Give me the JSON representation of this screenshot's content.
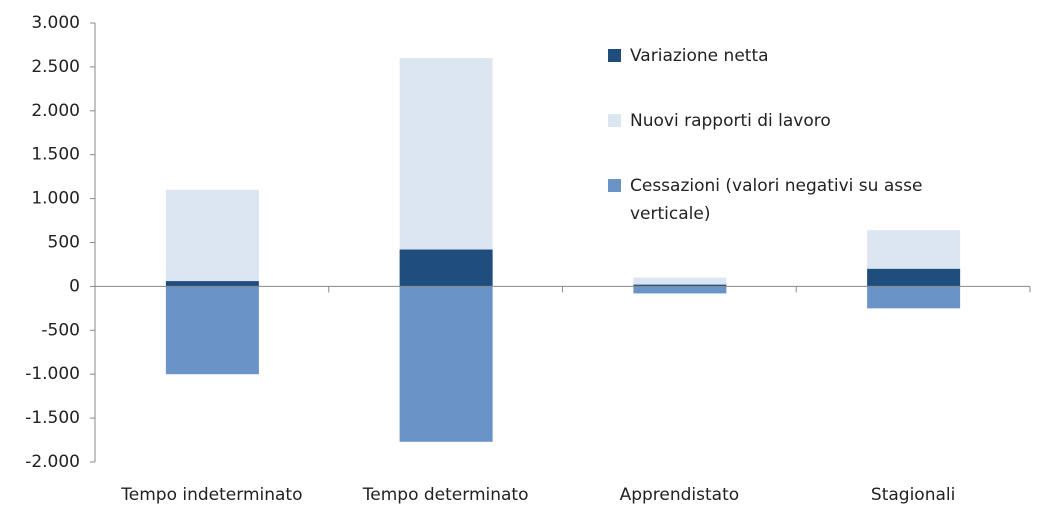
{
  "chart_data": {
    "type": "bar",
    "categories": [
      "Tempo indeterminato",
      "Tempo determinato",
      "Apprendistato",
      "Stagionali"
    ],
    "series": [
      {
        "name": "Variazione netta",
        "color": "#1f4e7e",
        "values": [
          60,
          420,
          20,
          200
        ]
      },
      {
        "name": "Nuovi rapporti di lavoro",
        "color": "#dce6f2",
        "values": [
          1100,
          2600,
          100,
          640
        ]
      },
      {
        "name": "Cessazioni (valori negativi su asse verticale)",
        "color": "#6a93c8",
        "values": [
          -1000,
          -1770,
          -80,
          -250
        ]
      }
    ],
    "ylim": [
      -2000,
      3000
    ],
    "yticks": [
      {
        "value": -2000,
        "label": "-2.000"
      },
      {
        "value": -1500,
        "label": "-1.500"
      },
      {
        "value": -1000,
        "label": "-1.000"
      },
      -500,
      0,
      500,
      {
        "value": 1000,
        "label": "1.000"
      },
      {
        "value": 1500,
        "label": "1.500"
      },
      {
        "value": 2000,
        "label": "2.000"
      },
      {
        "value": 2500,
        "label": "2.500"
      },
      {
        "value": 3000,
        "label": "3.000"
      }
    ],
    "legend_position": "upper right"
  }
}
